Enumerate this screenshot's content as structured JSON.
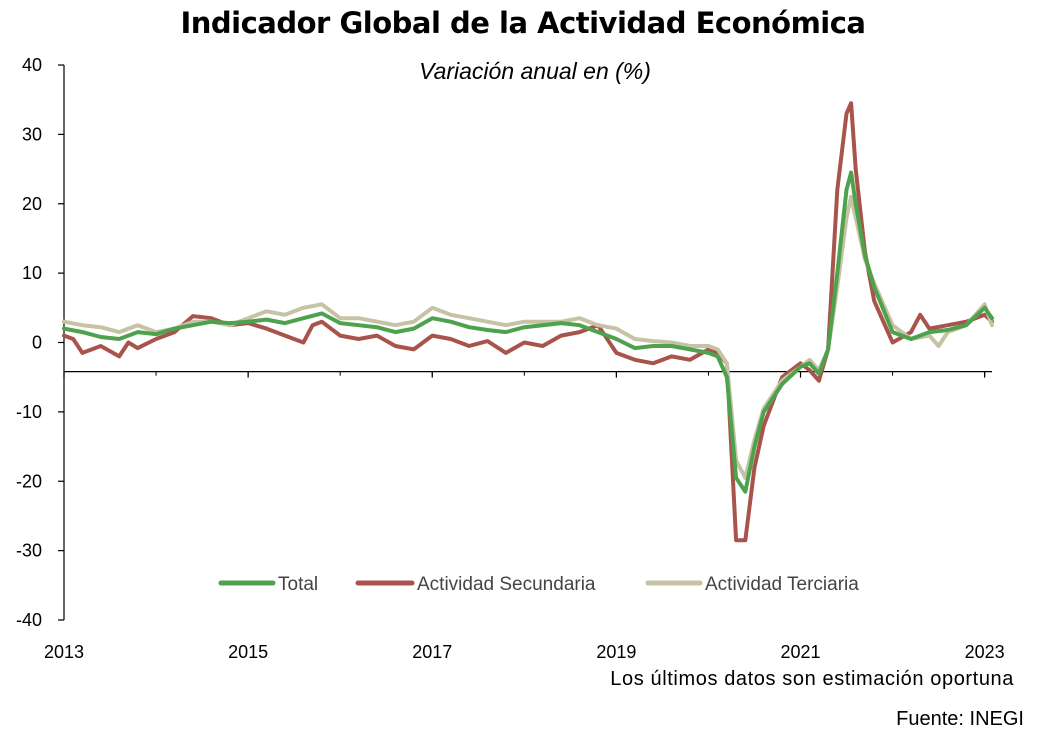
{
  "chart_data": {
    "type": "line",
    "title": "Indicador Global de la Actividad Económica",
    "subtitle": "Variación anual en (%)",
    "ylim": [
      -40,
      40
    ],
    "y_ticks": [
      40,
      30,
      20,
      10,
      0,
      -10,
      -20,
      -30,
      -40
    ],
    "xlim": [
      2013,
      2023.08
    ],
    "x_ticks": [
      "2013",
      "2015",
      "2017",
      "2019",
      "2021",
      "2023"
    ],
    "legend": "bottom-center",
    "series": [
      {
        "name": "Total",
        "color": "#4ea14d",
        "points": [
          [
            2013.0,
            2.0
          ],
          [
            2013.2,
            1.5
          ],
          [
            2013.4,
            0.8
          ],
          [
            2013.6,
            0.5
          ],
          [
            2013.8,
            1.5
          ],
          [
            2014.0,
            1.2
          ],
          [
            2014.2,
            2.0
          ],
          [
            2014.4,
            2.5
          ],
          [
            2014.6,
            3.0
          ],
          [
            2014.8,
            2.8
          ],
          [
            2015.0,
            3.0
          ],
          [
            2015.2,
            3.3
          ],
          [
            2015.4,
            2.8
          ],
          [
            2015.6,
            3.5
          ],
          [
            2015.8,
            4.2
          ],
          [
            2016.0,
            2.8
          ],
          [
            2016.2,
            2.5
          ],
          [
            2016.4,
            2.2
          ],
          [
            2016.6,
            1.5
          ],
          [
            2016.8,
            2.0
          ],
          [
            2017.0,
            3.5
          ],
          [
            2017.2,
            3.0
          ],
          [
            2017.4,
            2.2
          ],
          [
            2017.6,
            1.8
          ],
          [
            2017.8,
            1.5
          ],
          [
            2018.0,
            2.2
          ],
          [
            2018.2,
            2.5
          ],
          [
            2018.4,
            2.8
          ],
          [
            2018.6,
            2.5
          ],
          [
            2018.8,
            1.5
          ],
          [
            2019.0,
            0.5
          ],
          [
            2019.2,
            -0.8
          ],
          [
            2019.4,
            -0.5
          ],
          [
            2019.6,
            -0.5
          ],
          [
            2019.8,
            -1.0
          ],
          [
            2020.0,
            -1.5
          ],
          [
            2020.1,
            -2.0
          ],
          [
            2020.2,
            -5.0
          ],
          [
            2020.3,
            -19.5
          ],
          [
            2020.4,
            -21.5
          ],
          [
            2020.5,
            -15.0
          ],
          [
            2020.6,
            -10.0
          ],
          [
            2020.8,
            -6.0
          ],
          [
            2021.0,
            -3.5
          ],
          [
            2021.1,
            -3.0
          ],
          [
            2021.2,
            -4.5
          ],
          [
            2021.3,
            -1.0
          ],
          [
            2021.4,
            10.0
          ],
          [
            2021.5,
            22.0
          ],
          [
            2021.55,
            24.5
          ],
          [
            2021.6,
            20.0
          ],
          [
            2021.7,
            12.5
          ],
          [
            2021.8,
            8.0
          ],
          [
            2022.0,
            1.5
          ],
          [
            2022.2,
            0.5
          ],
          [
            2022.4,
            1.5
          ],
          [
            2022.6,
            1.8
          ],
          [
            2022.8,
            2.5
          ],
          [
            2023.0,
            5.0
          ],
          [
            2023.08,
            3.5
          ]
        ]
      },
      {
        "name": "Actividad Secundaria",
        "color": "#a8544c",
        "points": [
          [
            2013.0,
            1.0
          ],
          [
            2013.1,
            0.5
          ],
          [
            2013.2,
            -1.5
          ],
          [
            2013.4,
            -0.5
          ],
          [
            2013.6,
            -2.0
          ],
          [
            2013.7,
            0.0
          ],
          [
            2013.8,
            -0.8
          ],
          [
            2014.0,
            0.5
          ],
          [
            2014.2,
            1.5
          ],
          [
            2014.4,
            3.8
          ],
          [
            2014.6,
            3.5
          ],
          [
            2014.8,
            2.5
          ],
          [
            2015.0,
            2.8
          ],
          [
            2015.2,
            2.0
          ],
          [
            2015.4,
            1.0
          ],
          [
            2015.6,
            0.0
          ],
          [
            2015.7,
            2.5
          ],
          [
            2015.8,
            3.0
          ],
          [
            2016.0,
            1.0
          ],
          [
            2016.2,
            0.5
          ],
          [
            2016.4,
            1.0
          ],
          [
            2016.6,
            -0.5
          ],
          [
            2016.8,
            -1.0
          ],
          [
            2017.0,
            1.0
          ],
          [
            2017.2,
            0.5
          ],
          [
            2017.4,
            -0.5
          ],
          [
            2017.6,
            0.2
          ],
          [
            2017.8,
            -1.5
          ],
          [
            2018.0,
            0.0
          ],
          [
            2018.2,
            -0.5
          ],
          [
            2018.4,
            1.0
          ],
          [
            2018.6,
            1.5
          ],
          [
            2018.8,
            2.5
          ],
          [
            2019.0,
            -1.5
          ],
          [
            2019.2,
            -2.5
          ],
          [
            2019.4,
            -3.0
          ],
          [
            2019.6,
            -2.0
          ],
          [
            2019.8,
            -2.5
          ],
          [
            2020.0,
            -1.0
          ],
          [
            2020.1,
            -1.5
          ],
          [
            2020.2,
            -3.0
          ],
          [
            2020.3,
            -28.5
          ],
          [
            2020.4,
            -28.5
          ],
          [
            2020.5,
            -18.0
          ],
          [
            2020.6,
            -12.0
          ],
          [
            2020.8,
            -5.0
          ],
          [
            2021.0,
            -3.0
          ],
          [
            2021.1,
            -4.0
          ],
          [
            2021.2,
            -5.5
          ],
          [
            2021.3,
            -1.0
          ],
          [
            2021.4,
            22.0
          ],
          [
            2021.5,
            33.0
          ],
          [
            2021.55,
            34.5
          ],
          [
            2021.6,
            25.0
          ],
          [
            2021.7,
            13.0
          ],
          [
            2021.8,
            6.0
          ],
          [
            2022.0,
            0.0
          ],
          [
            2022.2,
            1.5
          ],
          [
            2022.3,
            4.0
          ],
          [
            2022.4,
            2.0
          ],
          [
            2022.6,
            2.5
          ],
          [
            2022.8,
            3.0
          ],
          [
            2023.0,
            4.0
          ],
          [
            2023.08,
            3.0
          ]
        ]
      },
      {
        "name": "Actividad Terciaria",
        "color": "#c6c3a5",
        "points": [
          [
            2013.0,
            3.0
          ],
          [
            2013.2,
            2.5
          ],
          [
            2013.4,
            2.2
          ],
          [
            2013.6,
            1.5
          ],
          [
            2013.8,
            2.5
          ],
          [
            2014.0,
            1.5
          ],
          [
            2014.2,
            2.0
          ],
          [
            2014.4,
            3.0
          ],
          [
            2014.6,
            3.0
          ],
          [
            2014.8,
            2.5
          ],
          [
            2015.0,
            3.5
          ],
          [
            2015.2,
            4.5
          ],
          [
            2015.4,
            4.0
          ],
          [
            2015.6,
            5.0
          ],
          [
            2015.8,
            5.5
          ],
          [
            2016.0,
            3.5
          ],
          [
            2016.2,
            3.5
          ],
          [
            2016.4,
            3.0
          ],
          [
            2016.6,
            2.5
          ],
          [
            2016.8,
            3.0
          ],
          [
            2017.0,
            5.0
          ],
          [
            2017.2,
            4.0
          ],
          [
            2017.4,
            3.5
          ],
          [
            2017.6,
            3.0
          ],
          [
            2017.8,
            2.5
          ],
          [
            2018.0,
            3.0
          ],
          [
            2018.2,
            3.0
          ],
          [
            2018.4,
            3.0
          ],
          [
            2018.6,
            3.5
          ],
          [
            2018.8,
            2.5
          ],
          [
            2019.0,
            2.0
          ],
          [
            2019.2,
            0.5
          ],
          [
            2019.4,
            0.2
          ],
          [
            2019.6,
            0.0
          ],
          [
            2019.8,
            -0.5
          ],
          [
            2020.0,
            -0.5
          ],
          [
            2020.1,
            -1.0
          ],
          [
            2020.2,
            -3.0
          ],
          [
            2020.3,
            -17.0
          ],
          [
            2020.4,
            -19.5
          ],
          [
            2020.5,
            -14.0
          ],
          [
            2020.6,
            -9.5
          ],
          [
            2020.8,
            -5.5
          ],
          [
            2021.0,
            -3.5
          ],
          [
            2021.1,
            -2.5
          ],
          [
            2021.2,
            -4.0
          ],
          [
            2021.3,
            -1.0
          ],
          [
            2021.4,
            8.0
          ],
          [
            2021.5,
            18.0
          ],
          [
            2021.55,
            21.0
          ],
          [
            2021.6,
            18.0
          ],
          [
            2021.7,
            12.0
          ],
          [
            2021.8,
            8.5
          ],
          [
            2022.0,
            2.5
          ],
          [
            2022.2,
            0.5
          ],
          [
            2022.4,
            1.0
          ],
          [
            2022.5,
            -0.5
          ],
          [
            2022.6,
            1.5
          ],
          [
            2022.8,
            2.5
          ],
          [
            2023.0,
            5.5
          ],
          [
            2023.08,
            2.5
          ]
        ]
      }
    ]
  },
  "note": "Los últimos datos son estimación oportuna",
  "source": "Fuente: INEGI"
}
